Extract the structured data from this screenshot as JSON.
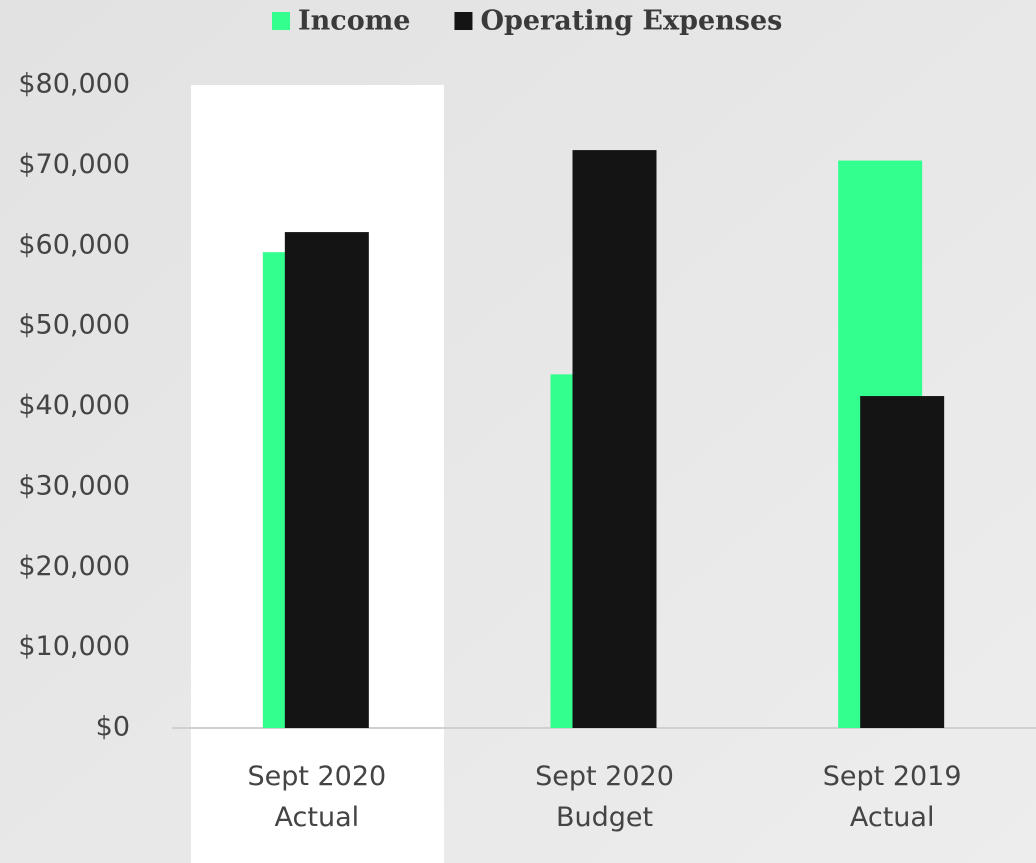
{
  "chart_data": {
    "type": "bar",
    "categories": [
      [
        "Sept 2020",
        "Actual"
      ],
      [
        "Sept 2020",
        "Budget"
      ],
      [
        "Sept 2019",
        "Actual"
      ]
    ],
    "series": [
      {
        "name": "Income",
        "color": "#33ff8f",
        "values": [
          59200,
          44000,
          70600
        ]
      },
      {
        "name": "Operating Expenses",
        "color": "#141414",
        "values": [
          61700,
          71900,
          41300
        ]
      }
    ],
    "ylim": [
      0,
      80000
    ],
    "yticks": [
      {
        "value": 0,
        "label": "$0"
      },
      {
        "value": 10000,
        "label": "$10,000"
      },
      {
        "value": 20000,
        "label": "$20,000"
      },
      {
        "value": 30000,
        "label": "$30,000"
      },
      {
        "value": 40000,
        "label": "$40,000"
      },
      {
        "value": 50000,
        "label": "$50,000"
      },
      {
        "value": 60000,
        "label": "$60,000"
      },
      {
        "value": 70000,
        "label": "$70,000"
      },
      {
        "value": 80000,
        "label": "$80,000"
      }
    ],
    "legend": "top"
  }
}
